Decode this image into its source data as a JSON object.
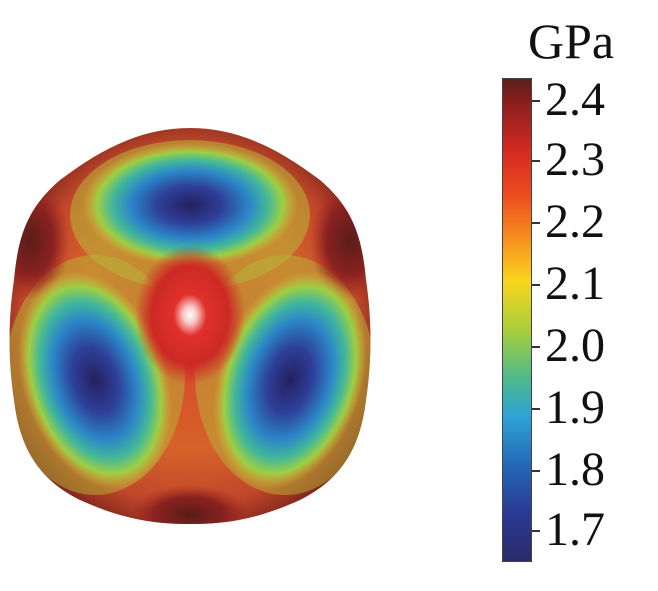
{
  "colorbar": {
    "unit": "GPa",
    "ticks": [
      "2.4",
      "2.3",
      "2.2",
      "2.1",
      "2.0",
      "1.9",
      "1.8",
      "1.7"
    ],
    "colors": [
      "#5a1f1a",
      "#d42a22",
      "#f68e1e",
      "#f9d51e",
      "#4fb98a",
      "#2fa3d4",
      "#2468b8",
      "#2b2a6a"
    ]
  },
  "surface": {
    "description_colors": {
      "high": "#8c1e1e",
      "mid": "#d42a22",
      "low": "#2b2a6a"
    }
  }
}
